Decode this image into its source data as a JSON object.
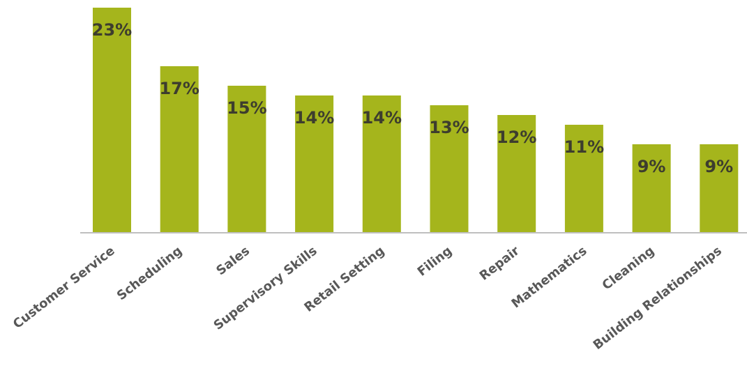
{
  "chart_data": {
    "type": "bar",
    "categories": [
      "Customer Service",
      "Scheduling",
      "Sales",
      "Supervisory Skills",
      "Retail Setting",
      "Filing",
      "Repair",
      "Mathematics",
      "Cleaning",
      "Building Relationships"
    ],
    "values": [
      23,
      17,
      15,
      14,
      14,
      13,
      12,
      11,
      9,
      9
    ],
    "data_labels": [
      "23%",
      "17%",
      "15%",
      "14%",
      "14%",
      "13%",
      "12%",
      "11%",
      "9%",
      "9%"
    ],
    "title": "",
    "xlabel": "",
    "ylabel": "",
    "ylim": [
      0,
      23
    ],
    "grid": false,
    "legend": "none",
    "bar_color": "#a5b51c",
    "axis_color": "#bfbfbf"
  }
}
